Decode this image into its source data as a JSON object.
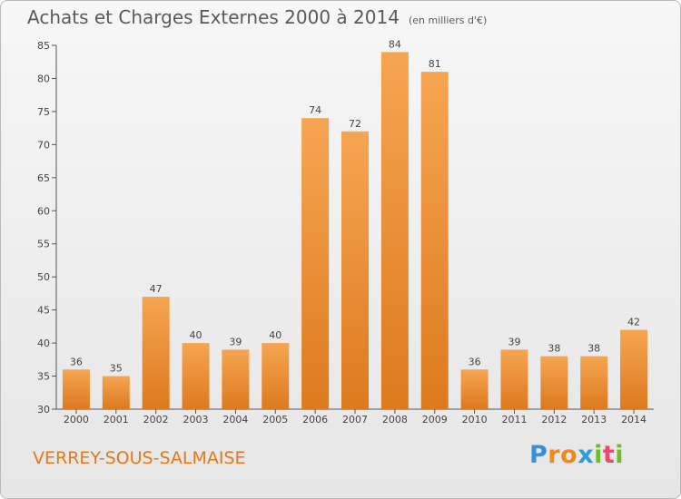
{
  "chart_data": {
    "type": "bar",
    "title": "Achats et Charges Externes 2000 à 2014",
    "subtitle": "(en milliers d'€)",
    "categories": [
      "2000",
      "2001",
      "2002",
      "2003",
      "2004",
      "2005",
      "2006",
      "2007",
      "2008",
      "2009",
      "2010",
      "2011",
      "2012",
      "2013",
      "2014"
    ],
    "values": [
      36,
      35,
      47,
      40,
      39,
      40,
      74,
      72,
      84,
      81,
      36,
      39,
      38,
      38,
      42
    ],
    "ylim": [
      30,
      85
    ],
    "yticks": [
      30,
      35,
      40,
      45,
      50,
      55,
      60,
      65,
      70,
      75,
      80,
      85
    ],
    "grid": false,
    "bar_color": "#f28c2a",
    "xlabel": "",
    "ylabel": ""
  },
  "footer": {
    "commune": "VERREY-SOUS-SALMAISE",
    "logo": {
      "p": "P",
      "r": "r",
      "o": "o",
      "x": "x",
      "i": "i",
      "t": "t",
      "i2": "i"
    }
  }
}
